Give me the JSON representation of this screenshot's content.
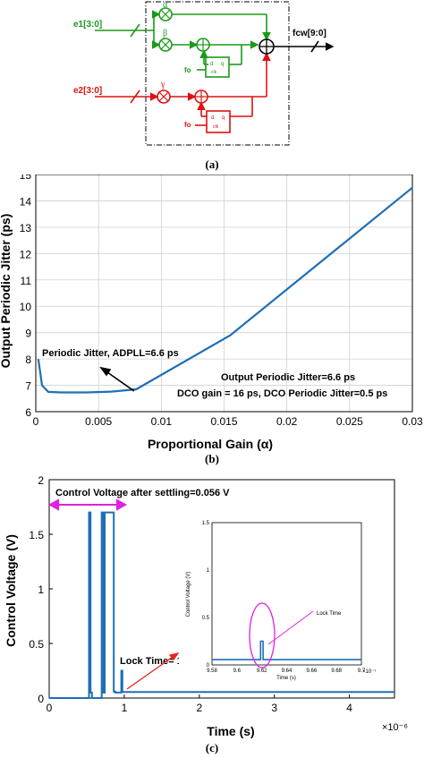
{
  "panel_a": {
    "caption": "(a)",
    "inputs": [
      "e1[3:0]",
      "e2[3:0]"
    ],
    "output": "fcw[9:0]",
    "greek": [
      "α",
      "β",
      "γ"
    ],
    "ff_label": "fo",
    "ff_pins": [
      "d",
      "q",
      "clk"
    ],
    "colors": {
      "green": "#1a9a1a",
      "red": "#dd1111",
      "black": "#000000"
    }
  },
  "panel_b": {
    "caption": "(b)",
    "annotations": {
      "left": "Periodic Jitter, ADPLL=6.6 ps",
      "right1": "Output Periodic Jitter=6.6 ps",
      "right2": "DCO gain = 16 ps, DCO Periodic Jitter=0.5 ps"
    }
  },
  "panel_c": {
    "caption": "(c)",
    "annotations": {
      "settle": "Control Voltage after settling=0.056 V",
      "lock": "Lock Time= 1 us"
    },
    "inset": {
      "xlabel": "Time (s)",
      "ylabel": "Control Voltage (V)",
      "exponent": "×10⁻⁷",
      "annotation": "Lock Time",
      "x_ticks": [
        "9.58",
        "9.6",
        "9.62",
        "9.64",
        "9.66",
        "9.68",
        "9.7"
      ],
      "y_ticks": [
        "0",
        "0.5",
        "1",
        "1.5"
      ]
    }
  },
  "chart_data": [
    {
      "type": "line",
      "xlabel": "Proportional Gain (α)",
      "ylabel": "Output Periodic Jitter (ps)",
      "xlim": [
        0,
        0.03
      ],
      "ylim": [
        6,
        15
      ],
      "x_ticks": [
        "0",
        "0.005",
        "0.01",
        "0.015",
        "0.02",
        "0.025",
        "0.03"
      ],
      "y_ticks": [
        "6",
        "7",
        "8",
        "9",
        "10",
        "11",
        "12",
        "13",
        "14",
        "15"
      ],
      "grid": true,
      "color": "#1f6fb5",
      "x": [
        0.0002,
        0.0005,
        0.001,
        0.002,
        0.004,
        0.006,
        0.008,
        0.0155,
        0.03
      ],
      "y": [
        8.0,
        7.0,
        6.75,
        6.73,
        6.73,
        6.76,
        6.85,
        8.9,
        14.5
      ]
    },
    {
      "type": "line",
      "xlabel": "Time (s)",
      "ylabel": "Control Voltage (V)",
      "exponent": "×10⁻⁶",
      "xlim": [
        0,
        4.6
      ],
      "ylim": [
        0,
        2
      ],
      "x_ticks": [
        "0",
        "1",
        "2",
        "3",
        "4"
      ],
      "y_ticks": [
        "0",
        "0.5",
        "1",
        "1.5",
        "2"
      ],
      "grid": false,
      "color": "#1f6fb5",
      "x": [
        0,
        0.53,
        0.53,
        0.55,
        0.55,
        0.57,
        0.57,
        0.7,
        0.7,
        0.72,
        0.72,
        0.74,
        0.74,
        0.86,
        0.86,
        0.88,
        0.88,
        0.96,
        0.96,
        0.975,
        0.975,
        4.6
      ],
      "y": [
        0,
        0,
        1.7,
        1.7,
        0.05,
        0.05,
        0,
        0,
        1.7,
        1.7,
        0.05,
        0.05,
        1.7,
        1.7,
        0.06,
        0.06,
        0.05,
        0.05,
        0.25,
        0.25,
        0.056,
        0.056
      ]
    },
    {
      "type": "line",
      "xlabel": "Time (s)",
      "ylabel": "Control Voltage (V)",
      "xlim": [
        9.58,
        9.7
      ],
      "ylim": [
        0,
        1.5
      ],
      "x": [
        9.58,
        9.619,
        9.619,
        9.621,
        9.621,
        9.7
      ],
      "y": [
        0.056,
        0.056,
        0.25,
        0.25,
        0.056,
        0.056
      ]
    }
  ]
}
